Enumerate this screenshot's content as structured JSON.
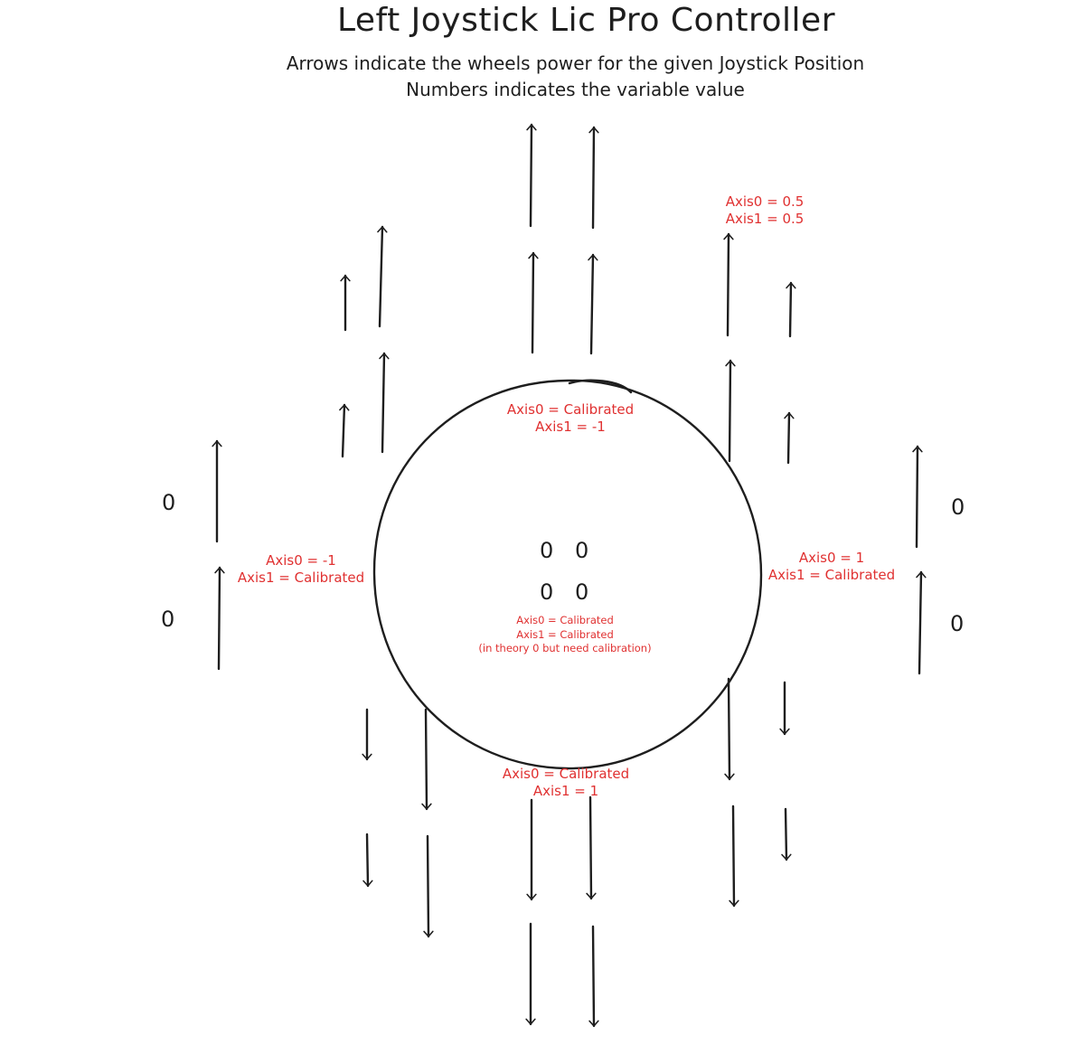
{
  "title": "Left Joystick Lic Pro Controller",
  "subtitle_lines": [
    "Arrows indicate the wheels power for the given Joystick Position",
    "Numbers indicates the variable value"
  ],
  "positions": {
    "up": {
      "axis0": "Axis0 = Calibrated",
      "axis1": "Axis1 = -1"
    },
    "up_right": {
      "axis0": "Axis0 = 0.5",
      "axis1": "Axis1 = 0.5"
    },
    "left": {
      "axis0": "Axis0 = -1",
      "axis1": "Axis1 = Calibrated"
    },
    "right": {
      "axis0": "Axis0 = 1",
      "axis1": "Axis1 = Calibrated"
    },
    "down": {
      "axis0": "Axis0 = Calibrated",
      "axis1": "Axis1 = 1"
    },
    "center": {
      "axis0": "Axis0 = Calibrated",
      "axis1": "Axis1 = Calibrated",
      "note": "(in theory 0 but need calibration)"
    }
  },
  "zero_value": "0",
  "colors": {
    "stroke": "#1e1e1e",
    "label": "#e03131",
    "background": "#ffffff"
  }
}
